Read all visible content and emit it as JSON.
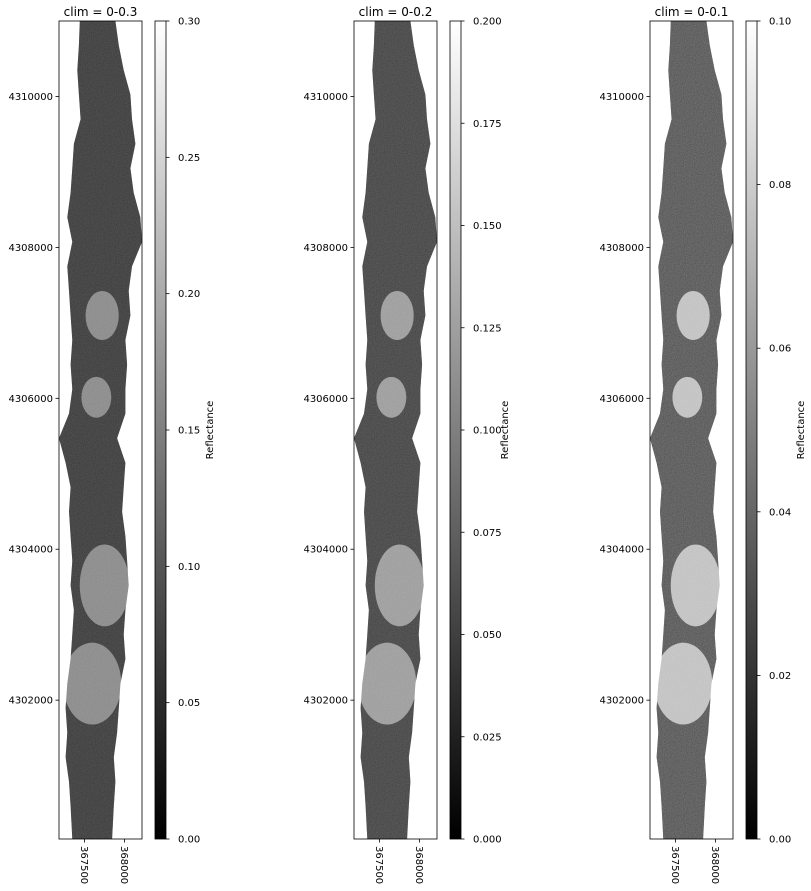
{
  "chart_data": [
    {
      "type": "heatmap",
      "title": "clim = 0-0.3",
      "colormap": "gray",
      "xlabel": "",
      "ylabel": "",
      "x_ticks": [
        367500,
        368000
      ],
      "x_tick_labels": [
        "367500",
        "368000"
      ],
      "y_ticks": [
        4302000,
        4304000,
        4306000,
        4308000,
        4310000
      ],
      "y_tick_labels": [
        "4302000",
        "4304000",
        "4306000",
        "4308000",
        "4310000"
      ],
      "xlim": [
        367180,
        368220
      ],
      "ylim": [
        4300160,
        4311000
      ],
      "clim": [
        0,
        0.3
      ],
      "colorbar": {
        "label": "Reflectance",
        "ticks": [
          0.0,
          0.05,
          0.1,
          0.15,
          0.2,
          0.25,
          0.3
        ],
        "tick_labels": [
          "0.00",
          "0.05",
          "0.10",
          "0.15",
          "0.20",
          "0.25",
          "0.30"
        ]
      }
    },
    {
      "type": "heatmap",
      "title": "clim = 0-0.2",
      "colormap": "gray",
      "xlabel": "",
      "ylabel": "",
      "x_ticks": [
        367500,
        368000
      ],
      "x_tick_labels": [
        "367500",
        "368000"
      ],
      "y_ticks": [
        4302000,
        4304000,
        4306000,
        4308000,
        4310000
      ],
      "y_tick_labels": [
        "4302000",
        "4304000",
        "4306000",
        "4308000",
        "4310000"
      ],
      "xlim": [
        367180,
        368220
      ],
      "ylim": [
        4300160,
        4311000
      ],
      "clim": [
        0,
        0.2
      ],
      "colorbar": {
        "label": "Reflectance",
        "ticks": [
          0.0,
          0.025,
          0.05,
          0.075,
          0.1,
          0.125,
          0.15,
          0.175,
          0.2
        ],
        "tick_labels": [
          "0.000",
          "0.025",
          "0.050",
          "0.075",
          "0.100",
          "0.125",
          "0.150",
          "0.175",
          "0.200"
        ]
      }
    },
    {
      "type": "heatmap",
      "title": "clim = 0-0.1",
      "colormap": "gray",
      "xlabel": "",
      "ylabel": "",
      "x_ticks": [
        367500,
        368000
      ],
      "x_tick_labels": [
        "367500",
        "368000"
      ],
      "y_ticks": [
        4302000,
        4304000,
        4306000,
        4308000,
        4310000
      ],
      "y_tick_labels": [
        "4302000",
        "4304000",
        "4306000",
        "4308000",
        "4310000"
      ],
      "xlim": [
        367180,
        368220
      ],
      "ylim": [
        4300160,
        4311000
      ],
      "clim": [
        0,
        0.1
      ],
      "colorbar": {
        "label": "Reflectance",
        "ticks": [
          0.0,
          0.02,
          0.04,
          0.06,
          0.08,
          0.1
        ],
        "tick_labels": [
          "0.00",
          "0.02",
          "0.04",
          "0.06",
          "0.08",
          "0.10"
        ]
      }
    }
  ]
}
